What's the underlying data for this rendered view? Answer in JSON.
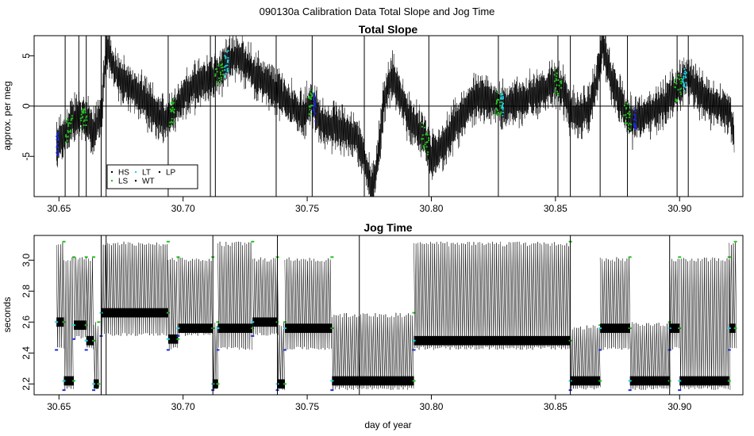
{
  "figure": {
    "suptitle": "090130a   Calibration Data Total Slope and Jog Time",
    "xlabel": "day of year"
  },
  "colors": {
    "HS": "#000000",
    "LS": "#22c21f",
    "LT": "#22d3e6",
    "WT": "#000000",
    "LP": "#000000",
    "blue": "#1a2bd6"
  },
  "chart_data": [
    {
      "type": "line",
      "title": "Total Slope",
      "xlabel": "",
      "ylabel": "approx. per meg",
      "xlim": [
        30.64,
        30.9255
      ],
      "ylim": [
        -9.0,
        7.0
      ],
      "xticks": [
        "30.65",
        "30.70",
        "30.75",
        "30.80",
        "30.85",
        "30.90"
      ],
      "yticks": [
        "-5",
        "0",
        "5"
      ],
      "hline": 0,
      "legend": {
        "placement": "bottom-left",
        "entries": [
          {
            "label": "HS",
            "color": "#000000"
          },
          {
            "label": "LT",
            "color": "#22d3e6"
          },
          {
            "label": "LP",
            "color": "#000000"
          },
          {
            "label": "LS",
            "color": "#22c21f"
          },
          {
            "label": "WT",
            "color": "#000000"
          }
        ]
      },
      "series": [
        {
          "x": [
            30.649,
            30.652,
            30.655,
            30.658,
            30.661,
            30.664,
            30.667,
            30.669,
            30.672,
            30.675,
            30.68,
            30.685,
            30.69,
            30.693,
            30.696,
            30.7,
            30.705,
            30.71,
            30.715,
            30.718,
            30.722,
            30.728,
            30.735,
            30.742,
            30.748,
            30.752,
            30.755,
            30.76,
            30.765,
            30.77,
            30.773,
            30.776,
            30.778,
            30.781,
            30.784,
            30.787,
            30.79,
            30.793,
            30.797,
            30.8,
            30.803,
            30.807,
            30.812,
            30.818,
            30.824,
            30.83,
            30.835,
            30.84,
            30.845,
            30.85,
            30.853,
            30.856,
            30.86,
            30.864,
            30.867,
            30.869,
            30.872,
            30.875,
            30.878,
            30.881,
            30.885,
            30.89,
            30.895,
            30.9,
            30.903,
            30.906,
            30.91,
            30.915,
            30.92,
            30.922
          ],
          "y": [
            -4.0,
            -3.0,
            -1.5,
            -1.0,
            -1.5,
            -2.5,
            -1.0,
            6.0,
            4.0,
            2.5,
            1.5,
            0.5,
            -1.0,
            -1.5,
            -0.5,
            1.0,
            2.0,
            2.5,
            3.5,
            4.5,
            5.0,
            3.5,
            2.0,
            0.5,
            -1.0,
            0.5,
            -1.5,
            -2.0,
            -2.5,
            -3.0,
            -5.0,
            -8.5,
            -6.0,
            0.5,
            3.0,
            1.5,
            -0.5,
            -2.0,
            -3.0,
            -5.0,
            -4.5,
            -3.0,
            -1.0,
            1.0,
            0.5,
            0.0,
            0.5,
            1.0,
            1.5,
            2.5,
            1.5,
            -0.5,
            -1.0,
            0.0,
            3.0,
            6.0,
            3.0,
            1.0,
            -0.5,
            -1.5,
            -1.0,
            -0.5,
            0.5,
            2.0,
            3.0,
            2.0,
            1.0,
            0.0,
            -0.5,
            -3.0
          ]
        }
      ]
    },
    {
      "type": "line",
      "title": "Jog Time",
      "xlabel": "day of year",
      "ylabel": "seconds",
      "xlim": [
        30.64,
        30.9255
      ],
      "ylim": [
        2.13,
        3.16
      ],
      "xticks": [
        "30.65",
        "30.70",
        "30.75",
        "30.80",
        "30.85",
        "30.90"
      ],
      "yticks": [
        "2.2",
        "2.4",
        "2.6",
        "2.8",
        "3.0"
      ],
      "segments": [
        {
          "x": [
            30.649,
            30.652
          ],
          "low": 2.42,
          "base": 2.6,
          "high": 3.12
        },
        {
          "x": [
            30.652,
            30.656
          ],
          "low": 2.16,
          "base": 2.22,
          "high": 3.02
        },
        {
          "x": [
            30.656,
            30.661
          ],
          "low": 2.49,
          "base": 2.58,
          "high": 3.02
        },
        {
          "x": [
            30.661,
            30.664
          ],
          "low": 2.42,
          "base": 2.48,
          "high": 3.02
        },
        {
          "x": [
            30.664,
            30.666
          ],
          "low": 2.16,
          "base": 2.2,
          "high": 2.6
        },
        {
          "x": [
            30.667,
            30.694
          ],
          "low": 2.51,
          "base": 2.66,
          "high": 3.12
        },
        {
          "x": [
            30.694,
            30.698
          ],
          "low": 2.42,
          "base": 2.49,
          "high": 3.02
        },
        {
          "x": [
            30.698,
            30.712
          ],
          "low": 2.51,
          "base": 2.56,
          "high": 3.02
        },
        {
          "x": [
            30.712,
            30.714
          ],
          "low": 2.16,
          "base": 2.2,
          "high": 2.6
        },
        {
          "x": [
            30.714,
            30.728
          ],
          "low": 2.42,
          "base": 2.56,
          "high": 3.12
        },
        {
          "x": [
            30.728,
            30.738
          ],
          "low": 2.51,
          "base": 2.6,
          "high": 3.02
        },
        {
          "x": [
            30.738,
            30.741
          ],
          "low": 2.16,
          "base": 2.2,
          "high": 2.6
        },
        {
          "x": [
            30.741,
            30.76
          ],
          "low": 2.42,
          "base": 2.56,
          "high": 3.02
        },
        {
          "x": [
            30.76,
            30.793
          ],
          "low": 2.16,
          "base": 2.22,
          "high": 2.66
        },
        {
          "x": [
            30.793,
            30.856
          ],
          "low": 2.42,
          "base": 2.48,
          "high": 3.12
        },
        {
          "x": [
            30.856,
            30.868
          ],
          "low": 2.16,
          "base": 2.22,
          "high": 2.58
        },
        {
          "x": [
            30.868,
            30.88
          ],
          "low": 2.42,
          "base": 2.56,
          "high": 3.02
        },
        {
          "x": [
            30.88,
            30.896
          ],
          "low": 2.16,
          "base": 2.22,
          "high": 2.6
        },
        {
          "x": [
            30.896,
            30.9
          ],
          "low": 2.42,
          "base": 2.56,
          "high": 3.02
        },
        {
          "x": [
            30.9,
            30.92
          ],
          "low": 2.16,
          "base": 2.22,
          "high": 3.02
        },
        {
          "x": [
            30.92,
            30.9225
          ],
          "low": 2.42,
          "base": 2.56,
          "high": 3.12
        }
      ]
    }
  ]
}
